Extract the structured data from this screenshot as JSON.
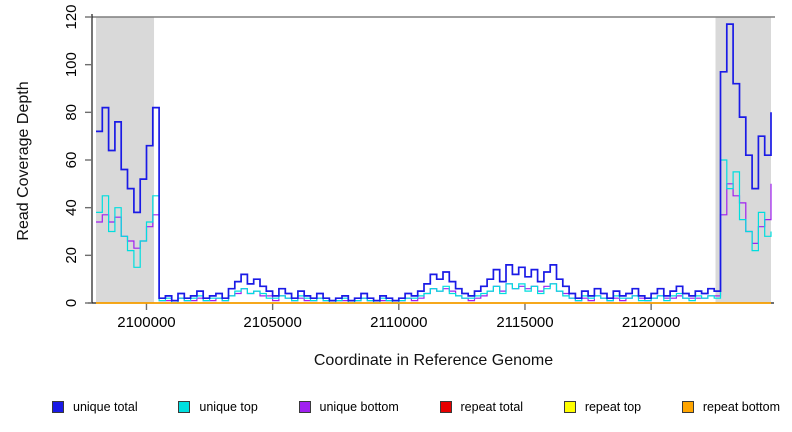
{
  "chart_data": {
    "type": "line",
    "title": "",
    "xlabel": "Coordinate in Reference Genome",
    "ylabel": "Read Coverage Depth",
    "xlim": [
      2098000,
      2124750
    ],
    "ylim": [
      0,
      120
    ],
    "x_ticks": [
      2100000,
      2105000,
      2110000,
      2115000,
      2120000
    ],
    "y_ticks": [
      0,
      20,
      40,
      60,
      80,
      100,
      120
    ],
    "grid": false,
    "legend_position": "bottom",
    "interpolation": "step-after",
    "top_rule_y": 120,
    "top_rule_color": "#7f7f7f",
    "axis_color": "#1a1a1a",
    "tick_color": "#6e6e6e",
    "highlight_regions": [
      {
        "x_start": 2098000,
        "x_end": 2100300,
        "color": "#d9d9d9"
      },
      {
        "x_start": 2122550,
        "x_end": 2124750,
        "color": "#d9d9d9"
      }
    ],
    "x0": 2098000,
    "dx": 250,
    "series": [
      {
        "name": "unique total",
        "color": "#1a1ae6",
        "width": 1.7,
        "values": [
          72,
          82,
          64,
          76,
          56,
          48,
          38,
          52,
          66,
          82,
          2,
          3,
          1,
          4,
          2,
          3,
          5,
          2,
          3,
          4,
          2,
          6,
          9,
          12,
          8,
          10,
          7,
          5,
          3,
          6,
          4,
          2,
          5,
          3,
          2,
          4,
          2,
          1,
          2,
          3,
          1,
          2,
          4,
          2,
          1,
          3,
          2,
          1,
          2,
          4,
          3,
          5,
          8,
          12,
          10,
          13,
          9,
          6,
          4,
          3,
          5,
          7,
          10,
          14,
          9,
          16,
          12,
          15,
          11,
          14,
          9,
          13,
          16,
          10,
          7,
          4,
          2,
          5,
          3,
          6,
          4,
          2,
          5,
          3,
          4,
          6,
          3,
          2,
          4,
          6,
          3,
          5,
          7,
          4,
          3,
          5,
          4,
          6,
          5,
          97,
          117,
          92,
          78,
          62,
          48,
          70,
          62,
          80
        ]
      },
      {
        "name": "unique top",
        "color": "#00dede",
        "width": 1.2,
        "values": [
          38,
          45,
          30,
          40,
          28,
          22,
          15,
          26,
          34,
          45,
          1,
          2,
          0,
          2,
          1,
          2,
          3,
          1,
          2,
          2,
          1,
          3,
          5,
          6,
          4,
          5,
          4,
          2,
          2,
          3,
          2,
          1,
          3,
          2,
          1,
          2,
          1,
          0,
          1,
          2,
          0,
          1,
          2,
          1,
          0,
          2,
          1,
          0,
          1,
          2,
          2,
          3,
          4,
          6,
          5,
          7,
          4,
          3,
          2,
          2,
          3,
          4,
          5,
          7,
          4,
          8,
          6,
          8,
          5,
          7,
          4,
          6,
          8,
          5,
          3,
          2,
          1,
          3,
          2,
          3,
          2,
          1,
          3,
          2,
          2,
          3,
          1,
          1,
          2,
          3,
          1,
          3,
          4,
          2,
          1,
          3,
          2,
          3,
          2,
          60,
          48,
          55,
          35,
          30,
          22,
          38,
          28,
          30
        ]
      },
      {
        "name": "unique bottom",
        "color": "#a020f0",
        "width": 1.2,
        "values": [
          34,
          37,
          34,
          36,
          28,
          26,
          23,
          26,
          32,
          37,
          1,
          1,
          1,
          2,
          1,
          1,
          2,
          1,
          1,
          2,
          1,
          3,
          4,
          6,
          4,
          5,
          3,
          3,
          1,
          3,
          2,
          1,
          2,
          1,
          1,
          2,
          1,
          1,
          1,
          1,
          1,
          1,
          2,
          1,
          1,
          1,
          1,
          1,
          1,
          2,
          1,
          2,
          4,
          6,
          5,
          6,
          5,
          3,
          2,
          1,
          2,
          3,
          5,
          7,
          5,
          8,
          6,
          7,
          6,
          7,
          5,
          7,
          8,
          5,
          4,
          2,
          1,
          2,
          1,
          3,
          2,
          1,
          2,
          1,
          2,
          3,
          2,
          1,
          2,
          3,
          2,
          2,
          3,
          2,
          2,
          2,
          2,
          3,
          3,
          37,
          50,
          45,
          42,
          30,
          25,
          32,
          35,
          50
        ]
      },
      {
        "name": "repeat total",
        "color": "#e60000",
        "width": 1.2,
        "constant": 0
      },
      {
        "name": "repeat top",
        "color": "#ffff00",
        "width": 1.2,
        "constant": 0
      },
      {
        "name": "repeat bottom",
        "color": "#ffa500",
        "width": 1.5,
        "constant": 0
      }
    ]
  }
}
